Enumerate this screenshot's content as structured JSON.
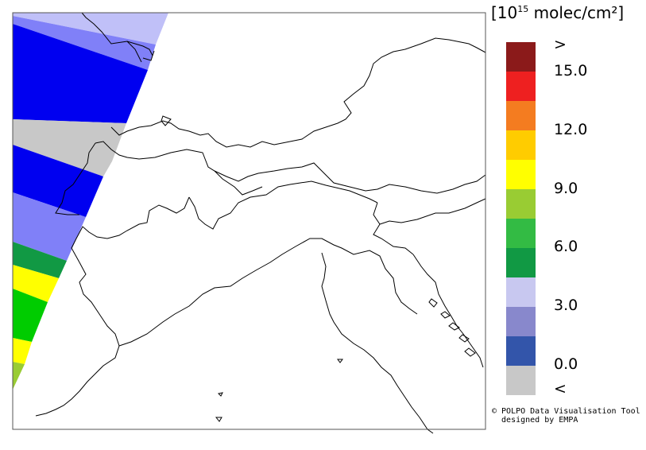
{
  "legend": {
    "title_prefix": "[10",
    "title_exp": "15",
    "title_suffix": " molec/cm²]",
    "labels": [
      ">",
      "15.0",
      "12.0",
      "9.0",
      "6.0",
      "3.0",
      "0.0",
      "<"
    ],
    "colors": [
      "#8b1a1a",
      "#ee2020",
      "#f47c20",
      "#ffcc00",
      "#ffff00",
      "#99cc33",
      "#33bb44",
      "#119944",
      "#c8c8f0",
      "#8888cc",
      "#3355aa",
      "#c8c8c8"
    ]
  },
  "credit": {
    "line1": "© POLPO Data Visualisation Tool",
    "line2": "  designed by EMPA"
  },
  "map": {
    "swath_colors": [
      "#c0c0f8",
      "#8080f8",
      "#0000f0",
      "#c8c8c8",
      "#0000f0",
      "#8080f8",
      "#119944",
      "#ffff00",
      "#00cc00",
      "#ffff00",
      "#99cc33"
    ]
  }
}
